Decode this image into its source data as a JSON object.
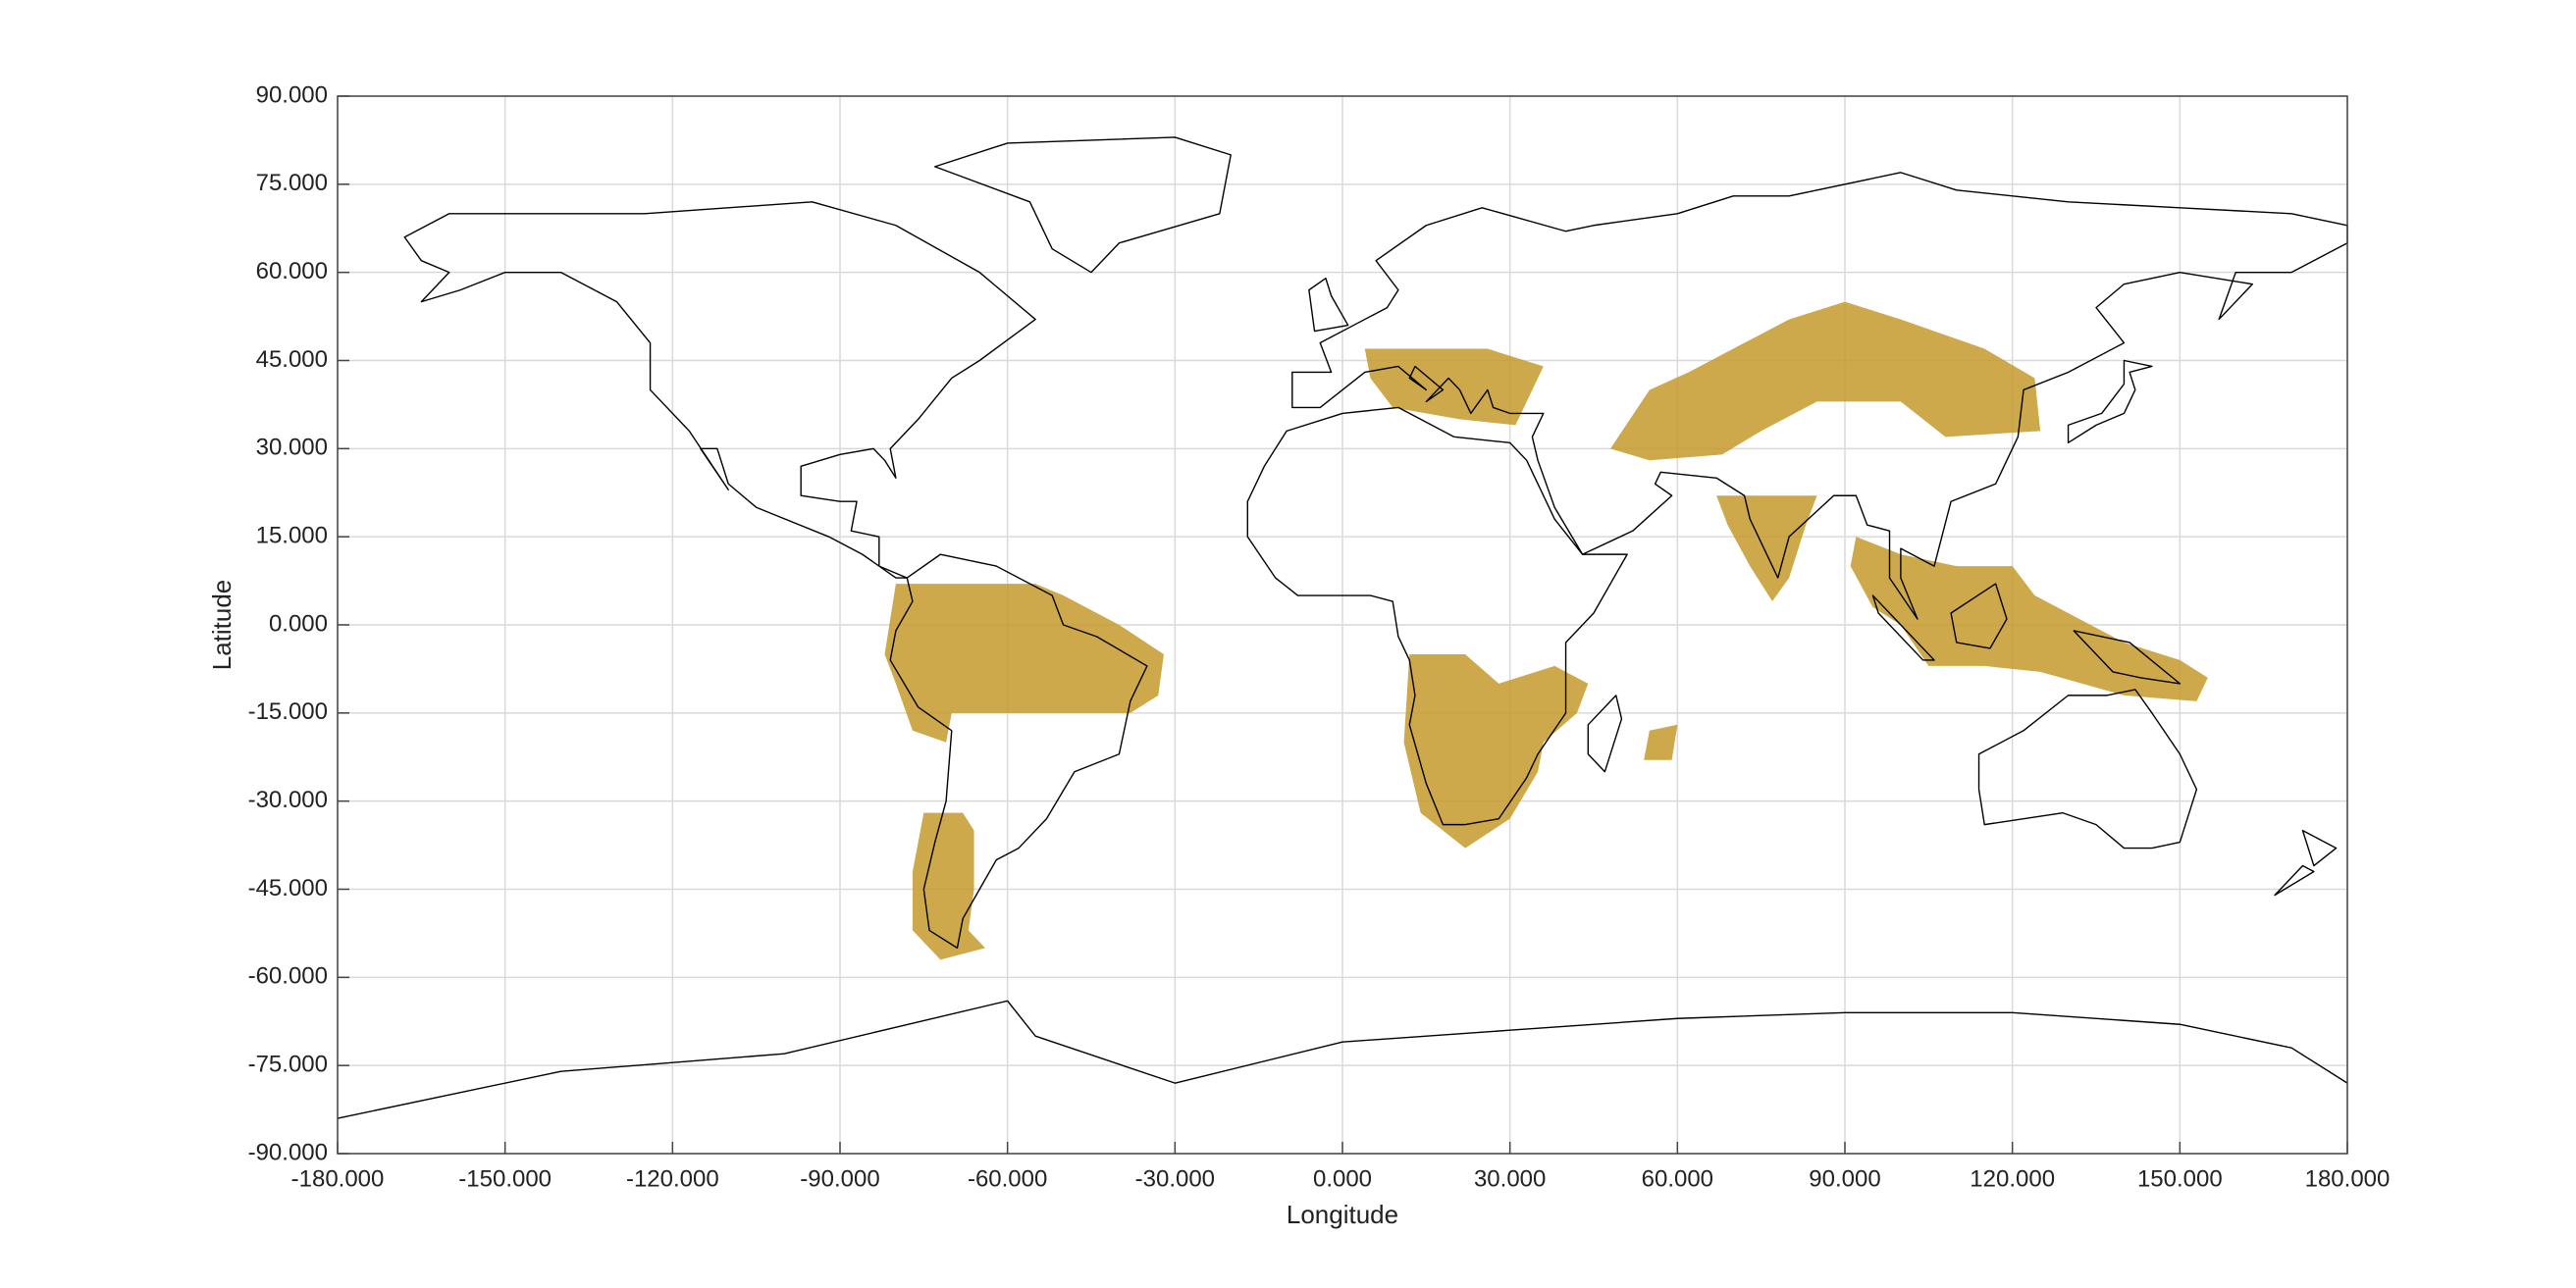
{
  "chart_data": {
    "type": "map",
    "xlabel": "Longitude",
    "ylabel": "Latitude",
    "xlim": [
      -180,
      180
    ],
    "ylim": [
      -90,
      90
    ],
    "xticks": [
      {
        "value": -180,
        "label": "-180.000"
      },
      {
        "value": -150,
        "label": "-150.000"
      },
      {
        "value": -120,
        "label": "-120.000"
      },
      {
        "value": -90,
        "label": "-90.000"
      },
      {
        "value": -60,
        "label": "-60.000"
      },
      {
        "value": -30,
        "label": "-30.000"
      },
      {
        "value": 0,
        "label": "0.000"
      },
      {
        "value": 30,
        "label": "30.000"
      },
      {
        "value": 60,
        "label": "60.000"
      },
      {
        "value": 90,
        "label": "90.000"
      },
      {
        "value": 120,
        "label": "120.000"
      },
      {
        "value": 150,
        "label": "150.000"
      },
      {
        "value": 180,
        "label": "180.000"
      }
    ],
    "yticks": [
      {
        "value": -90,
        "label": "-90.000"
      },
      {
        "value": -75,
        "label": "-75.000"
      },
      {
        "value": -60,
        "label": "-60.000"
      },
      {
        "value": -45,
        "label": "-45.000"
      },
      {
        "value": -30,
        "label": "-30.000"
      },
      {
        "value": -15,
        "label": "-15.000"
      },
      {
        "value": 0,
        "label": "0.000"
      },
      {
        "value": 15,
        "label": "15.000"
      },
      {
        "value": 30,
        "label": "30.000"
      },
      {
        "value": 45,
        "label": "45.000"
      },
      {
        "value": 60,
        "label": "60.000"
      },
      {
        "value": 75,
        "label": "75.000"
      },
      {
        "value": 90,
        "label": "90.000"
      }
    ],
    "grid": true,
    "color": "#c49a2c"
  }
}
